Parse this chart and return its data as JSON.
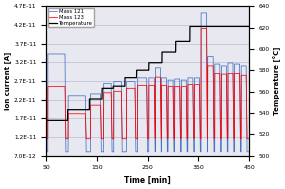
{
  "xlabel": "Time [min]",
  "ylabel_left": "Ion current [A]",
  "ylabel_right": "Temperature [°C]",
  "xlim": [
    50,
    450
  ],
  "ylim_left": [
    7e-12,
    4.7e-11
  ],
  "ylim_right": [
    500,
    640
  ],
  "yticks_left": [
    7e-12,
    1.2e-11,
    1.7e-11,
    2.2e-11,
    2.7e-11,
    3.2e-11,
    3.7e-11,
    4.2e-11,
    4.7e-11
  ],
  "ytick_labels_left": [
    "7.0E-12",
    "1.2E-11",
    "1.7E-11",
    "2.2E-11",
    "2.7E-11",
    "3.2E-11",
    "3.7E-11",
    "4.2E-11",
    "4.7E-11"
  ],
  "yticks_right": [
    500,
    520,
    540,
    560,
    580,
    600,
    620,
    640
  ],
  "xticks": [
    50,
    150,
    250,
    350,
    450
  ],
  "color_mass121": "#4472C4",
  "color_mass123": "#FF0000",
  "color_temp": "#000000",
  "background_color": "#E8E8F0",
  "grid_color": "#B0B0C8",
  "temp_segments": [
    [
      50,
      533
    ],
    [
      92,
      533
    ],
    [
      92,
      543
    ],
    [
      135,
      543
    ],
    [
      135,
      553
    ],
    [
      160,
      553
    ],
    [
      160,
      563
    ],
    [
      182,
      563
    ],
    [
      182,
      565
    ],
    [
      205,
      565
    ],
    [
      205,
      573
    ],
    [
      228,
      573
    ],
    [
      228,
      580
    ],
    [
      252,
      580
    ],
    [
      252,
      587
    ],
    [
      278,
      587
    ],
    [
      278,
      597
    ],
    [
      305,
      597
    ],
    [
      305,
      607
    ],
    [
      333,
      607
    ],
    [
      333,
      621
    ],
    [
      450,
      621
    ]
  ],
  "cycles": [
    {
      "ton": 53,
      "toff": 87,
      "p121": 3.42e-11,
      "p123": 2.55e-11,
      "b121": 8e-12,
      "b123": 1.15e-11
    },
    {
      "ton": 93,
      "toff": 127,
      "p121": 2.3e-11,
      "p123": 1.82e-11,
      "b121": 8e-12,
      "b123": 1.15e-11
    },
    {
      "ton": 137,
      "toff": 157,
      "p121": 2.35e-11,
      "p123": 2.05e-11,
      "b121": 8e-12,
      "b123": 1.15e-11
    },
    {
      "ton": 163,
      "toff": 178,
      "p121": 2.63e-11,
      "p123": 2.38e-11,
      "b121": 8e-12,
      "b123": 1.15e-11
    },
    {
      "ton": 183,
      "toff": 198,
      "p121": 2.68e-11,
      "p123": 2.42e-11,
      "b121": 8e-12,
      "b123": 1.15e-11
    },
    {
      "ton": 208,
      "toff": 225,
      "p121": 2.68e-11,
      "p123": 2.5e-11,
      "b121": 8e-12,
      "b123": 1.15e-11
    },
    {
      "ton": 230,
      "toff": 248,
      "p121": 2.78e-11,
      "p123": 2.58e-11,
      "b121": 8e-12,
      "b123": 1.15e-11
    },
    {
      "ton": 252,
      "toff": 263,
      "p121": 2.78e-11,
      "p123": 2.58e-11,
      "b121": 8e-12,
      "b123": 1.15e-11
    },
    {
      "ton": 265,
      "toff": 275,
      "p121": 3.05e-11,
      "p123": 2.8e-11,
      "b121": 8e-12,
      "b123": 1.15e-11
    },
    {
      "ton": 277,
      "toff": 287,
      "p121": 2.78e-11,
      "p123": 2.58e-11,
      "b121": 8e-12,
      "b123": 1.15e-11
    },
    {
      "ton": 290,
      "toff": 300,
      "p121": 2.72e-11,
      "p123": 2.55e-11,
      "b121": 8e-12,
      "b123": 1.15e-11
    },
    {
      "ton": 303,
      "toff": 313,
      "p121": 2.75e-11,
      "p123": 2.55e-11,
      "b121": 8e-12,
      "b123": 1.15e-11
    },
    {
      "ton": 316,
      "toff": 326,
      "p121": 2.72e-11,
      "p123": 2.55e-11,
      "b121": 8e-12,
      "b123": 1.15e-11
    },
    {
      "ton": 329,
      "toff": 339,
      "p121": 2.78e-11,
      "p123": 2.6e-11,
      "b121": 8e-12,
      "b123": 1.15e-11
    },
    {
      "ton": 342,
      "toff": 352,
      "p121": 2.78e-11,
      "p123": 2.6e-11,
      "b121": 8e-12,
      "b123": 1.15e-11
    },
    {
      "ton": 355,
      "toff": 366,
      "p121": 4.52e-11,
      "p123": 4.1e-11,
      "b121": 8e-12,
      "b123": 1.15e-11
    },
    {
      "ton": 368,
      "toff": 379,
      "p121": 3.35e-11,
      "p123": 3.1e-11,
      "b121": 8e-12,
      "b123": 1.15e-11
    },
    {
      "ton": 382,
      "toff": 392,
      "p121": 3.15e-11,
      "p123": 2.9e-11,
      "b121": 8e-12,
      "b123": 1.15e-11
    },
    {
      "ton": 395,
      "toff": 405,
      "p121": 3.1e-11,
      "p123": 2.88e-11,
      "b121": 8e-12,
      "b123": 1.15e-11
    },
    {
      "ton": 408,
      "toff": 418,
      "p121": 3.18e-11,
      "p123": 2.9e-11,
      "b121": 8e-12,
      "b123": 1.15e-11
    },
    {
      "ton": 421,
      "toff": 431,
      "p121": 3.15e-11,
      "p123": 2.9e-11,
      "b121": 8e-12,
      "b123": 1.15e-11
    },
    {
      "ton": 434,
      "toff": 444,
      "p121": 3.1e-11,
      "p123": 2.85e-11,
      "b121": 8e-12,
      "b123": 1.15e-11
    }
  ]
}
